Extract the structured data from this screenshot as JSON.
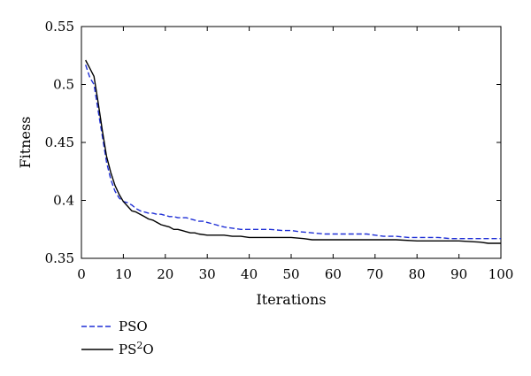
{
  "chart_data": {
    "type": "line",
    "title": "",
    "xlabel": "Iterations",
    "ylabel": "Fitness",
    "xlim": [
      0,
      100
    ],
    "ylim": [
      0.35,
      0.55
    ],
    "xticks": [
      0,
      10,
      20,
      30,
      40,
      50,
      60,
      70,
      80,
      90,
      100
    ],
    "yticks": [
      0.35,
      0.4,
      0.45,
      0.5,
      0.55
    ],
    "ytick_labels": [
      "0.35",
      "0.4",
      "0.45",
      "0.5",
      "0.55"
    ],
    "grid": false,
    "legend_position": "below-left",
    "series": [
      {
        "name": "PSO",
        "color": "#1f2fd6",
        "style": "dashed",
        "x": [
          1,
          2,
          3,
          4,
          5,
          6,
          7,
          8,
          9,
          10,
          11,
          12,
          13,
          14,
          15,
          16,
          17,
          18,
          19,
          20,
          21,
          22,
          23,
          24,
          25,
          26,
          27,
          28,
          29,
          30,
          32,
          34,
          36,
          38,
          40,
          45,
          48,
          50,
          52,
          55,
          58,
          60,
          62,
          65,
          68,
          70,
          72,
          75,
          78,
          80,
          85,
          88,
          90,
          95,
          98,
          100
        ],
        "y": [
          0.517,
          0.506,
          0.5,
          0.477,
          0.455,
          0.433,
          0.418,
          0.408,
          0.402,
          0.399,
          0.398,
          0.396,
          0.393,
          0.391,
          0.39,
          0.389,
          0.389,
          0.388,
          0.388,
          0.387,
          0.386,
          0.386,
          0.385,
          0.385,
          0.385,
          0.384,
          0.383,
          0.382,
          0.382,
          0.381,
          0.379,
          0.377,
          0.376,
          0.375,
          0.375,
          0.375,
          0.374,
          0.374,
          0.373,
          0.372,
          0.371,
          0.371,
          0.371,
          0.371,
          0.371,
          0.37,
          0.369,
          0.369,
          0.368,
          0.368,
          0.368,
          0.367,
          0.367,
          0.367,
          0.367,
          0.367
        ]
      },
      {
        "name": "PS²O",
        "name_base": "PS",
        "name_sup": "2",
        "name_tail": "O",
        "color": "#000000",
        "style": "solid",
        "x": [
          1,
          2,
          3,
          4,
          5,
          6,
          7,
          8,
          9,
          10,
          11,
          12,
          13,
          14,
          15,
          16,
          17,
          18,
          19,
          20,
          21,
          22,
          23,
          24,
          25,
          26,
          27,
          28,
          30,
          32,
          34,
          36,
          38,
          40,
          45,
          50,
          53,
          55,
          60,
          65,
          70,
          75,
          80,
          85,
          90,
          95,
          97,
          100
        ],
        "y": [
          0.521,
          0.514,
          0.507,
          0.484,
          0.46,
          0.438,
          0.424,
          0.413,
          0.405,
          0.399,
          0.395,
          0.391,
          0.39,
          0.388,
          0.386,
          0.384,
          0.383,
          0.381,
          0.379,
          0.378,
          0.377,
          0.375,
          0.375,
          0.374,
          0.373,
          0.372,
          0.372,
          0.371,
          0.37,
          0.37,
          0.37,
          0.369,
          0.369,
          0.368,
          0.368,
          0.368,
          0.367,
          0.366,
          0.366,
          0.366,
          0.366,
          0.366,
          0.365,
          0.365,
          0.365,
          0.364,
          0.363,
          0.363
        ]
      }
    ]
  }
}
